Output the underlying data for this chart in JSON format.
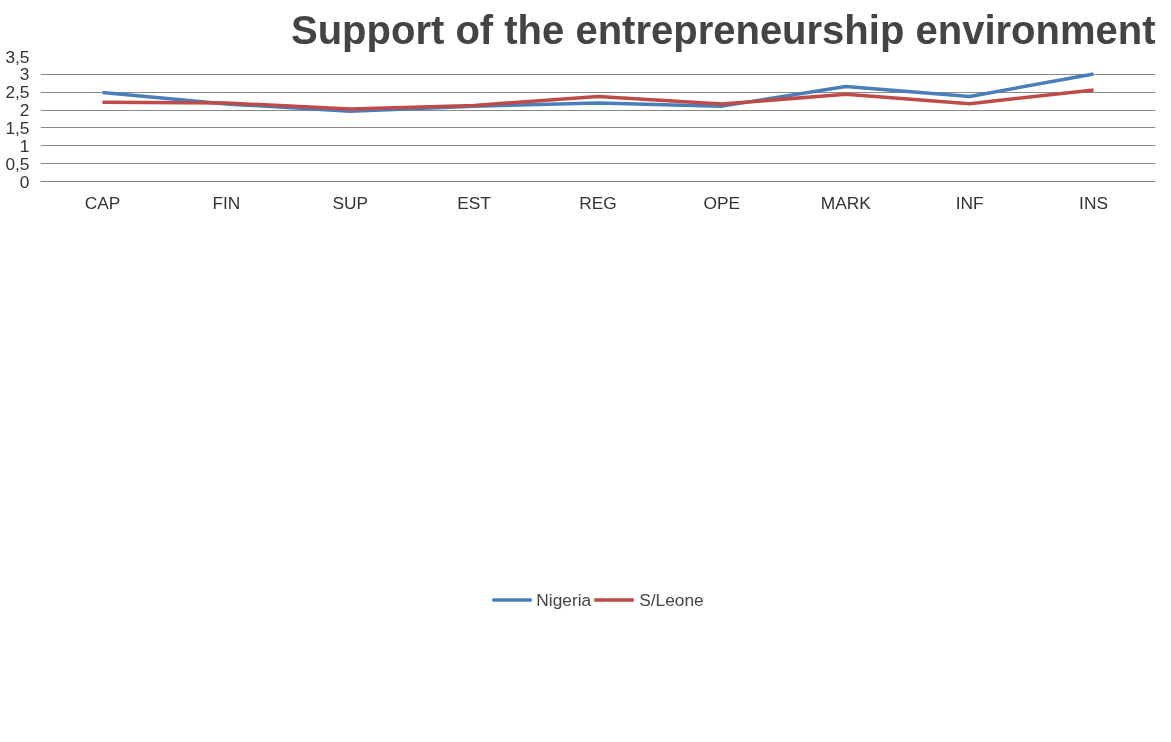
{
  "chart_data": {
    "type": "line",
    "title": "Support of the entrepreneurship environment",
    "categories": [
      "CAP",
      "FIN",
      "SUP",
      "EST",
      "REG",
      "OPE",
      "MARK",
      "INF",
      "INS"
    ],
    "series": [
      {
        "name": "Nigeria",
        "color": "#4a7ebb",
        "values": [
          2.49,
          2.17,
          1.97,
          2.11,
          2.2,
          2.11,
          2.66,
          2.38,
          3.01
        ]
      },
      {
        "name": "S/Leone",
        "color": "#be4b48",
        "values": [
          2.22,
          2.2,
          2.03,
          2.13,
          2.38,
          2.17,
          2.44,
          2.18,
          2.56
        ]
      }
    ],
    "ylim": [
      0,
      3.5
    ],
    "yticks": [
      {
        "value": 0,
        "label": "0"
      },
      {
        "value": 0.5,
        "label": "0,5"
      },
      {
        "value": 1,
        "label": "1"
      },
      {
        "value": 1.5,
        "label": "1,5"
      },
      {
        "value": 2,
        "label": "2"
      },
      {
        "value": 2.5,
        "label": "2,5"
      },
      {
        "value": 3,
        "label": "3"
      },
      {
        "value": 3.5,
        "label": "3,5"
      }
    ],
    "grid": "y",
    "legend": "bottom",
    "marker": "none",
    "line_style": "solid"
  }
}
